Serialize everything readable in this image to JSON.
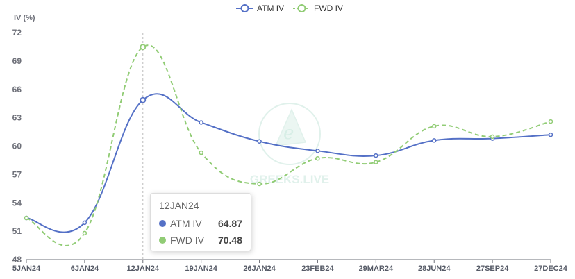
{
  "chart_data": {
    "type": "line",
    "ylabel": "IV (%)",
    "categories": [
      "5JAN24",
      "6JAN24",
      "12JAN24",
      "19JAN24",
      "26JAN24",
      "23FEB24",
      "29MAR24",
      "28JUN24",
      "27SEP24",
      "27DEC24"
    ],
    "ylim": [
      48,
      72
    ],
    "yticks": [
      48,
      51,
      54,
      57,
      60,
      63,
      66,
      69,
      72
    ],
    "series": [
      {
        "name": "ATM IV",
        "color": "#5470c6",
        "style": "solid",
        "values": [
          52.4,
          51.9,
          64.87,
          62.5,
          60.5,
          59.5,
          59.0,
          60.6,
          60.8,
          61.2
        ]
      },
      {
        "name": "FWD IV",
        "color": "#91cc75",
        "style": "dashed",
        "values": [
          52.4,
          50.8,
          70.48,
          59.3,
          56.0,
          58.7,
          58.3,
          62.1,
          61.0,
          62.6
        ]
      }
    ],
    "legend_position": "top-center",
    "grid": false,
    "watermark": "GREEKS.LIVE",
    "tooltip": {
      "title": "12JAN24",
      "items": [
        {
          "name": "ATM IV",
          "value": "64.87",
          "color": "#5470c6"
        },
        {
          "name": "FWD IV",
          "value": "70.48",
          "color": "#91cc75"
        }
      ]
    },
    "highlight_index": 2
  }
}
